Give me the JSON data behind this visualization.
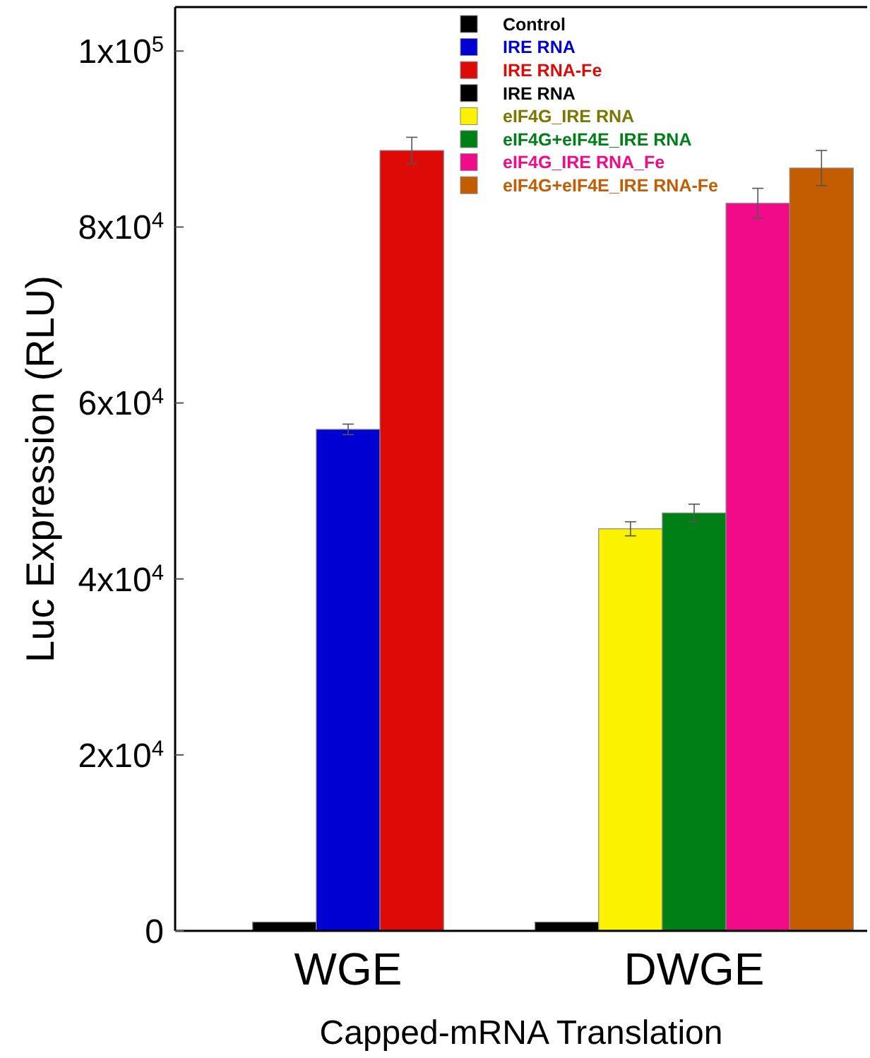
{
  "chart_data": {
    "type": "bar",
    "xlabel": "Capped-mRNA Translation",
    "ylabel": "Luc Expression (RLU)",
    "categories": [
      "WGE",
      "DWGE"
    ],
    "ylim": [
      0,
      105000
    ],
    "yticks": [
      0,
      {
        "value": 20000,
        "label": "2x10$^{4}$"
      },
      {
        "value": 40000,
        "label": "4x10$^{4}$"
      },
      {
        "value": 60000,
        "label": "6x10$^{4}$"
      },
      {
        "value": 80000,
        "label": "8x10$^{4}$"
      },
      {
        "value": 100000,
        "label": "1x10$^{5}$"
      }
    ],
    "legend": "top",
    "grid": false,
    "series": [
      {
        "name": "Control",
        "color": "#000000",
        "values": [
          1000,
          null
        ],
        "errors": [
          null,
          null
        ]
      },
      {
        "name": "IRE RNA",
        "color": "#0000d2",
        "values": [
          57000,
          null
        ],
        "errors": [
          600,
          null
        ]
      },
      {
        "name": "IRE RNA-Fe",
        "color": "#dd0a08",
        "values": [
          88700,
          null
        ],
        "errors": [
          1500,
          null
        ]
      },
      {
        "name": "IRE RNA",
        "color": "#000000",
        "values": [
          null,
          1000
        ],
        "errors": [
          null,
          null
        ]
      },
      {
        "name": "eIF4G_IRE RNA",
        "color": "#fbf200",
        "values": [
          null,
          45700
        ],
        "errors": [
          null,
          800
        ]
      },
      {
        "name": "eIF4G+eIF4E_IRE RNA",
        "color": "#017f17",
        "values": [
          null,
          47500
        ],
        "errors": [
          null,
          1000
        ]
      },
      {
        "name": "eIF4G_IRE RNA_Fe",
        "color": "#f20b88",
        "values": [
          null,
          82700
        ],
        "errors": [
          null,
          1700
        ]
      },
      {
        "name": "eIF4G+eIF4E_IRE RNA-Fe",
        "color": "#c45c02",
        "values": [
          null,
          86700
        ],
        "errors": [
          null,
          2000
        ]
      }
    ]
  }
}
